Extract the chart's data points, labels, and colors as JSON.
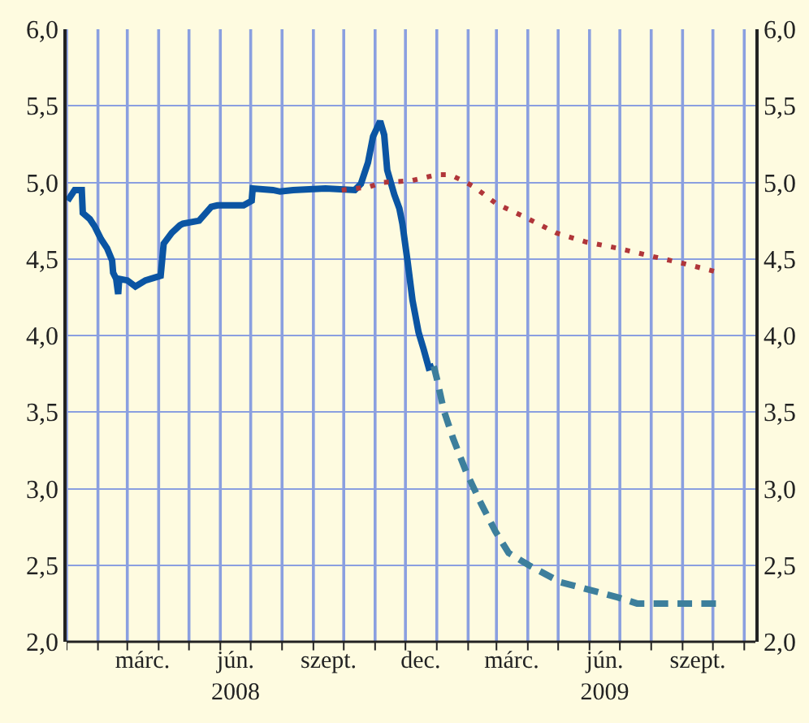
{
  "chart_data": {
    "type": "line",
    "series": [
      {
        "color": "#0b55a3",
        "line_style": "solid",
        "x": [
          "2008-01-02",
          "2008-01-09",
          "2008-01-16",
          "2008-01-17",
          "2008-01-24",
          "2008-01-29",
          "2008-02-04",
          "2008-02-10",
          "2008-02-15",
          "2008-02-16",
          "2008-02-19",
          "2008-02-21",
          "2008-02-22",
          "2008-03-01",
          "2008-03-09",
          "2008-03-19",
          "2008-03-29",
          "2008-04-03",
          "2008-04-06",
          "2008-04-14",
          "2008-04-22",
          "2008-04-25",
          "2008-05-11",
          "2008-05-23",
          "2008-05-29",
          "2008-06-24",
          "2008-07-02",
          "2008-07-03",
          "2008-07-23",
          "2008-07-30",
          "2008-08-12",
          "2008-09-13",
          "2008-10-12",
          "2008-10-18",
          "2008-10-25",
          "2008-10-30",
          "2008-11-06",
          "2008-11-10",
          "2008-11-13",
          "2008-11-20",
          "2008-11-25",
          "2008-11-28",
          "2008-12-03",
          "2008-12-08",
          "2008-12-14",
          "2008-12-19",
          "2008-12-24",
          "2008-12-29"
        ],
        "values": [
          4.88,
          4.95,
          4.95,
          4.8,
          4.76,
          4.71,
          4.63,
          4.57,
          4.49,
          4.41,
          4.37,
          4.27,
          4.37,
          4.36,
          4.32,
          4.36,
          4.38,
          4.39,
          4.6,
          4.67,
          4.72,
          4.73,
          4.75,
          4.84,
          4.85,
          4.85,
          4.88,
          4.96,
          4.95,
          4.94,
          4.95,
          4.96,
          4.95,
          4.99,
          5.13,
          5.3,
          5.4,
          5.31,
          5.08,
          4.92,
          4.83,
          4.73,
          4.49,
          4.23,
          4.02,
          3.91,
          3.79,
          3.8
        ]
      },
      {
        "color": "#3d7f9c",
        "line_style": "dashed",
        "x": [
          "2008-12-29",
          "2009-01-01",
          "2009-01-08",
          "2009-01-17",
          "2009-01-30",
          "2009-02-14",
          "2009-02-28",
          "2009-03-13",
          "2009-04-02",
          "2009-05-03",
          "2009-06-29",
          "2009-07-18",
          "2009-10-04"
        ],
        "values": [
          3.8,
          3.72,
          3.51,
          3.33,
          3.11,
          2.9,
          2.72,
          2.58,
          2.5,
          2.39,
          2.29,
          2.25,
          2.25
        ]
      },
      {
        "color": "#b0363a",
        "line_style": "dotted",
        "x": [
          "2008-09-29",
          "2008-10-13",
          "2008-10-26",
          "2008-11-08",
          "2008-12-06",
          "2009-01-01",
          "2009-01-14",
          "2009-01-27",
          "2009-02-07",
          "2009-03-01",
          "2009-03-27",
          "2009-04-29",
          "2009-05-29",
          "2009-06-29",
          "2009-07-31",
          "2009-09-02",
          "2009-10-02"
        ],
        "values": [
          4.95,
          4.96,
          4.97,
          5.0,
          5.01,
          5.05,
          5.05,
          5.01,
          4.97,
          4.86,
          4.78,
          4.67,
          4.61,
          4.57,
          4.52,
          4.47,
          4.42
        ]
      }
    ],
    "xlim": [
      "2008-01-01",
      "2009-11-12"
    ],
    "xticks": [
      {
        "value": "2008-01-01",
        "label": null
      },
      {
        "value": "2008-02-01",
        "label": null
      },
      {
        "value": "2008-03-01",
        "label": null
      },
      {
        "value": "2008-04-01",
        "label": null
      },
      {
        "value": "2008-05-01",
        "label": null
      },
      {
        "value": "2008-06-01",
        "label": null
      },
      {
        "value": "2008-07-01",
        "label": null
      },
      {
        "value": "2008-08-01",
        "label": null
      },
      {
        "value": "2008-09-01",
        "label": null
      },
      {
        "value": "2008-10-01",
        "label": null
      },
      {
        "value": "2008-11-01",
        "label": null
      },
      {
        "value": "2008-12-01",
        "label": null
      },
      {
        "value": "2009-01-01",
        "label": null
      },
      {
        "value": "2009-02-01",
        "label": null
      },
      {
        "value": "2009-03-01",
        "label": null
      },
      {
        "value": "2009-04-01",
        "label": null
      },
      {
        "value": "2009-05-01",
        "label": null
      },
      {
        "value": "2009-06-01",
        "label": null
      },
      {
        "value": "2009-07-01",
        "label": null
      },
      {
        "value": "2009-08-01",
        "label": null
      },
      {
        "value": "2009-09-01",
        "label": null
      },
      {
        "value": "2009-10-01",
        "label": null
      },
      {
        "value": "2009-11-01",
        "label": null
      },
      {
        "value": "2008-03-16",
        "label": "márc."
      },
      {
        "value": "2008-06-16",
        "label": "jún.\n2008"
      },
      {
        "value": "2008-09-16",
        "label": "szept."
      },
      {
        "value": "2008-12-16",
        "label": "dec."
      },
      {
        "value": "2009-03-16",
        "label": "márc."
      },
      {
        "value": "2009-06-16",
        "label": "jún.\n2009"
      },
      {
        "value": "2009-09-16",
        "label": "szept."
      }
    ],
    "ylim": [
      2.0,
      6.0
    ],
    "yticks": [
      {
        "value": 2.0,
        "label": "2,0"
      },
      {
        "value": 2.5,
        "label": "2,5"
      },
      {
        "value": 3.0,
        "label": "3,0"
      },
      {
        "value": 3.5,
        "label": "3,5"
      },
      {
        "value": 4.0,
        "label": "4,0"
      },
      {
        "value": 4.5,
        "label": "4,5"
      },
      {
        "value": 5.0,
        "label": "5,0"
      },
      {
        "value": 5.5,
        "label": "5,5"
      },
      {
        "value": 6.0,
        "label": "6,0"
      }
    ],
    "y2lim": [
      2.0,
      6.0
    ],
    "y2ticks": [
      {
        "value": 2.0,
        "label": "2,0"
      },
      {
        "value": 2.5,
        "label": "2,5"
      },
      {
        "value": 3.0,
        "label": "3,0"
      },
      {
        "value": 3.5,
        "label": "3,5"
      },
      {
        "value": 4.0,
        "label": "4,0"
      },
      {
        "value": 4.5,
        "label": "4,5"
      },
      {
        "value": 5.0,
        "label": "5,0"
      },
      {
        "value": 5.5,
        "label": "5,5"
      },
      {
        "value": 6.0,
        "label": "6,0"
      }
    ],
    "grid": true,
    "marker": "none"
  }
}
